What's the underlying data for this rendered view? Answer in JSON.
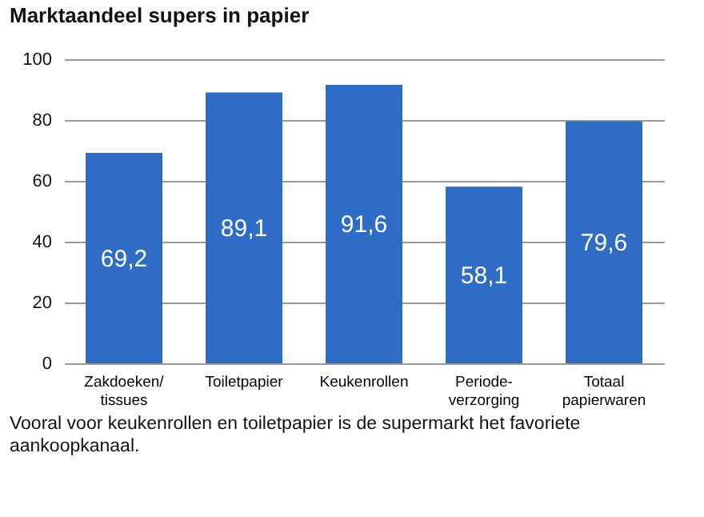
{
  "chart_data": {
    "type": "bar",
    "title": "Marktaandeel supers in papier",
    "categories": [
      "Zakdoeken/\ntissues",
      "Toiletpapier",
      "Keukenrollen",
      "Periode-\nverzorging",
      "Totaal\npapierwaren"
    ],
    "values": [
      69.2,
      89.1,
      91.6,
      58.1,
      79.6
    ],
    "value_labels": [
      "69,2",
      "89,1",
      "91,6",
      "58,1",
      "79,6"
    ],
    "color": "#2f6cc5",
    "ylim": [
      0,
      100
    ],
    "yticks": [
      0,
      20,
      40,
      60,
      80,
      100
    ],
    "grid": "y",
    "annotations": [
      "Vooral voor keukenrollen en toiletpapier is de supermarkt het favoriete aankoopkanaal."
    ]
  }
}
